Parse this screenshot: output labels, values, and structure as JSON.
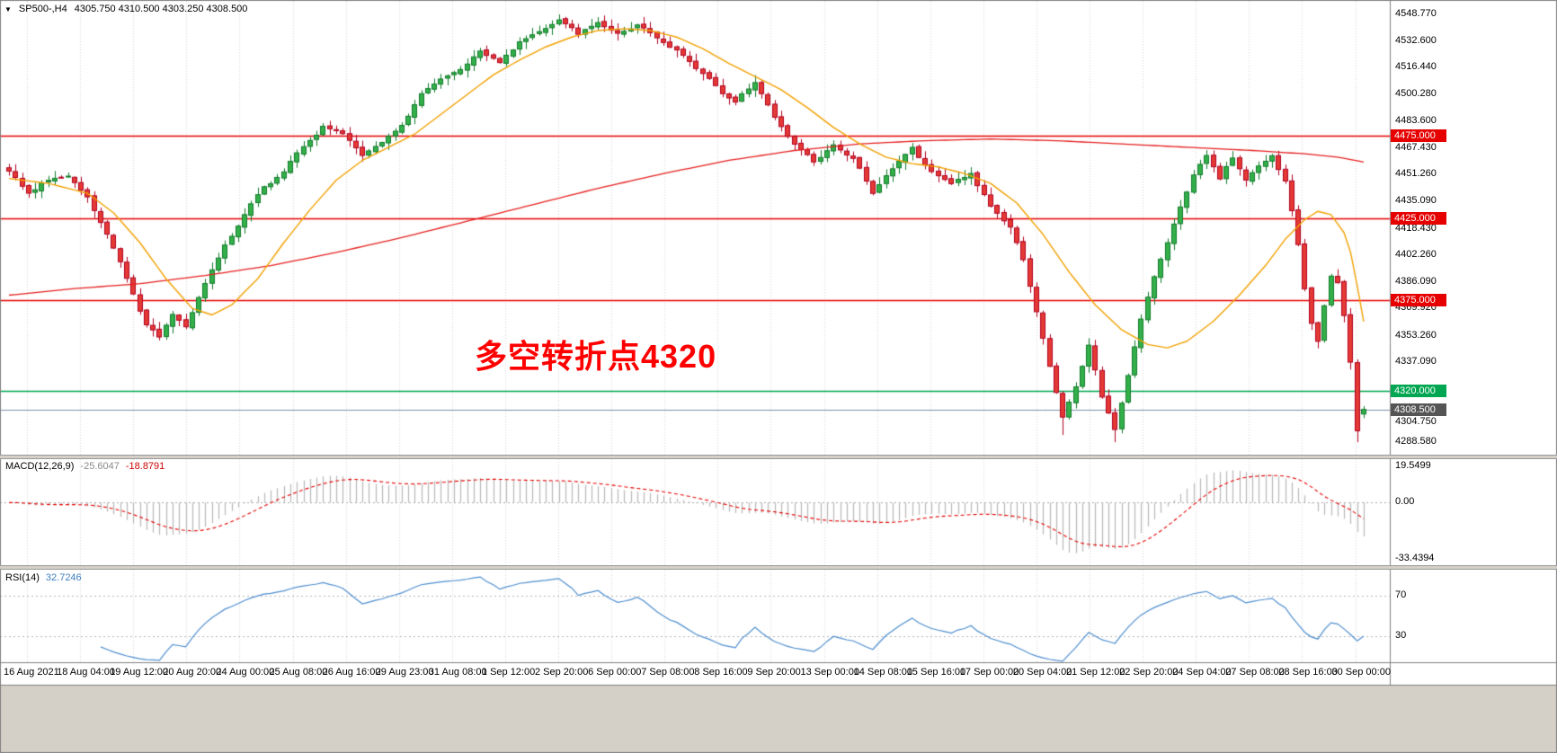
{
  "info": {
    "marker": "▼",
    "symbol_tf": "SP500-,H4",
    "ohlc": "4305.750 4310.500 4303.250 4308.500"
  },
  "chart_data": {
    "type": "candlestick",
    "symbol": "SP500-",
    "timeframe": "H4",
    "bars": 208,
    "price_range": [
      4281,
      4557
    ],
    "last_ohlc": {
      "open": 4305.75,
      "high": 4310.5,
      "low": 4303.25,
      "close": 4308.5
    },
    "annotation": {
      "text": "多空转折点4320",
      "color": "#ff0000"
    },
    "colors": {
      "up_fill": "#33b04a",
      "up_border": "#0f7a28",
      "down_fill": "#e53935",
      "down_border": "#b00020",
      "ma_fast": "#f2a100",
      "ma_slow": "#e62020",
      "grid": "#d9d9d9"
    },
    "price_axis": {
      "labels": [
        "4548.770",
        "4532.600",
        "4516.440",
        "4500.280",
        "4483.600",
        "4467.430",
        "4451.260",
        "4435.090",
        "4418.430",
        "4402.260",
        "4386.090",
        "4369.920",
        "4353.260",
        "4337.090",
        "4304.750",
        "4288.580"
      ],
      "values": [
        4548.77,
        4532.6,
        4516.44,
        4500.28,
        4483.6,
        4467.43,
        4451.26,
        4435.09,
        4418.43,
        4402.26,
        4386.09,
        4369.92,
        4353.26,
        4337.09,
        4304.75,
        4288.58
      ]
    },
    "levels": [
      {
        "value": 4475.0,
        "label": "4475.000",
        "color": "#e60000",
        "line_color": "#e60000",
        "type": "resistance"
      },
      {
        "value": 4425.0,
        "label": "4425.000",
        "color": "#e60000",
        "line_color": "#e60000",
        "type": "resistance"
      },
      {
        "value": 4375.0,
        "label": "4375.000",
        "color": "#e60000",
        "line_color": "#e60000",
        "type": "resistance"
      },
      {
        "value": 4320.0,
        "label": "4320.000",
        "color": "#00a651",
        "line_color": "#00a651",
        "type": "support"
      },
      {
        "value": 4308.5,
        "label": "4308.500",
        "color": "#555555",
        "line_color": "#7d93aa",
        "type": "current"
      }
    ],
    "time_axis": [
      "16 Aug 2021",
      "18 Aug 04:00",
      "19 Aug 12:00",
      "20 Aug 20:00",
      "24 Aug 00:00",
      "25 Aug 08:00",
      "26 Aug 16:00",
      "29 Aug 23:00",
      "31 Aug 08:00",
      "1 Sep 12:00",
      "2 Sep 20:00",
      "6 Sep 00:00",
      "7 Sep 08:00",
      "8 Sep 16:00",
      "9 Sep 20:00",
      "13 Sep 00:00",
      "14 Sep 08:00",
      "15 Sep 16:00",
      "17 Sep 00:00",
      "20 Sep 04:00",
      "21 Sep 12:00",
      "22 Sep 20:00",
      "24 Sep 04:00",
      "27 Sep 08:00",
      "28 Sep 16:00",
      "30 Sep 00:00"
    ],
    "close_keypoints": [
      [
        0,
        4452
      ],
      [
        3,
        4440
      ],
      [
        6,
        4448
      ],
      [
        9,
        4450
      ],
      [
        12,
        4438
      ],
      [
        15,
        4415
      ],
      [
        18,
        4388
      ],
      [
        21,
        4358
      ],
      [
        23,
        4352
      ],
      [
        25,
        4368
      ],
      [
        27,
        4360
      ],
      [
        30,
        4385
      ],
      [
        33,
        4408
      ],
      [
        36,
        4428
      ],
      [
        39,
        4445
      ],
      [
        42,
        4452
      ],
      [
        45,
        4468
      ],
      [
        48,
        4482
      ],
      [
        51,
        4475
      ],
      [
        54,
        4465
      ],
      [
        57,
        4472
      ],
      [
        60,
        4482
      ],
      [
        63,
        4498
      ],
      [
        66,
        4510
      ],
      [
        69,
        4515
      ],
      [
        72,
        4525
      ],
      [
        75,
        4520
      ],
      [
        78,
        4532
      ],
      [
        81,
        4538
      ],
      [
        84,
        4545
      ],
      [
        87,
        4538
      ],
      [
        90,
        4543
      ],
      [
        93,
        4537
      ],
      [
        96,
        4542
      ],
      [
        99,
        4536
      ],
      [
        102,
        4528
      ],
      [
        105,
        4515
      ],
      [
        108,
        4505
      ],
      [
        111,
        4495
      ],
      [
        114,
        4505
      ],
      [
        117,
        4488
      ],
      [
        120,
        4470
      ],
      [
        123,
        4458
      ],
      [
        126,
        4470
      ],
      [
        129,
        4460
      ],
      [
        132,
        4440
      ],
      [
        135,
        4455
      ],
      [
        138,
        4468
      ],
      [
        141,
        4455
      ],
      [
        144,
        4445
      ],
      [
        147,
        4452
      ],
      [
        150,
        4432
      ],
      [
        153,
        4418
      ],
      [
        155,
        4398
      ],
      [
        157,
        4366
      ],
      [
        159,
        4334
      ],
      [
        161,
        4304
      ],
      [
        163,
        4322
      ],
      [
        165,
        4346
      ],
      [
        167,
        4316
      ],
      [
        169,
        4298
      ],
      [
        171,
        4330
      ],
      [
        173,
        4362
      ],
      [
        175,
        4388
      ],
      [
        177,
        4408
      ],
      [
        179,
        4430
      ],
      [
        181,
        4450
      ],
      [
        183,
        4462
      ],
      [
        185,
        4448
      ],
      [
        187,
        4460
      ],
      [
        189,
        4448
      ],
      [
        191,
        4458
      ],
      [
        193,
        4465
      ],
      [
        195,
        4448
      ],
      [
        196,
        4430
      ],
      [
        197,
        4408
      ],
      [
        198,
        4382
      ],
      [
        199,
        4360
      ],
      [
        200,
        4350
      ],
      [
        201,
        4372
      ],
      [
        202,
        4390
      ],
      [
        203,
        4386
      ],
      [
        204,
        4366
      ],
      [
        205,
        4338
      ],
      [
        206,
        4296
      ],
      [
        207,
        4308.5
      ]
    ],
    "wick_overrides": {
      "84": {
        "high": 4548.77
      },
      "161": {
        "low": 4293.0
      },
      "169": {
        "low": 4288.58
      },
      "206": {
        "low": 4288.58
      }
    },
    "ma_fast": [
      [
        0,
        4449
      ],
      [
        6,
        4446
      ],
      [
        12,
        4440
      ],
      [
        16,
        4428
      ],
      [
        20,
        4410
      ],
      [
        24,
        4388
      ],
      [
        28,
        4370
      ],
      [
        31,
        4366
      ],
      [
        34,
        4372
      ],
      [
        38,
        4388
      ],
      [
        42,
        4410
      ],
      [
        46,
        4430
      ],
      [
        50,
        4448
      ],
      [
        54,
        4460
      ],
      [
        58,
        4468
      ],
      [
        62,
        4476
      ],
      [
        66,
        4488
      ],
      [
        70,
        4500
      ],
      [
        74,
        4512
      ],
      [
        78,
        4521
      ],
      [
        82,
        4529
      ],
      [
        86,
        4535
      ],
      [
        90,
        4539
      ],
      [
        94,
        4540
      ],
      [
        98,
        4539
      ],
      [
        102,
        4535
      ],
      [
        106,
        4528
      ],
      [
        110,
        4519
      ],
      [
        114,
        4511
      ],
      [
        118,
        4503
      ],
      [
        122,
        4492
      ],
      [
        126,
        4480
      ],
      [
        130,
        4470
      ],
      [
        134,
        4462
      ],
      [
        138,
        4458
      ],
      [
        142,
        4456
      ],
      [
        146,
        4452
      ],
      [
        150,
        4446
      ],
      [
        154,
        4434
      ],
      [
        158,
        4415
      ],
      [
        162,
        4392
      ],
      [
        166,
        4372
      ],
      [
        170,
        4357
      ],
      [
        174,
        4348
      ],
      [
        177,
        4346
      ],
      [
        180,
        4350
      ],
      [
        184,
        4362
      ],
      [
        188,
        4378
      ],
      [
        192,
        4396
      ],
      [
        195,
        4412
      ],
      [
        198,
        4424
      ],
      [
        200,
        4429
      ],
      [
        202,
        4427
      ],
      [
        204,
        4416
      ],
      [
        205,
        4404
      ],
      [
        206,
        4384
      ],
      [
        207,
        4362
      ]
    ],
    "ma_slow": [
      [
        0,
        4378
      ],
      [
        10,
        4382
      ],
      [
        20,
        4385
      ],
      [
        30,
        4390
      ],
      [
        40,
        4396
      ],
      [
        50,
        4404
      ],
      [
        60,
        4413
      ],
      [
        70,
        4423
      ],
      [
        80,
        4433
      ],
      [
        90,
        4443
      ],
      [
        100,
        4452
      ],
      [
        110,
        4460
      ],
      [
        120,
        4466
      ],
      [
        130,
        4470
      ],
      [
        140,
        4472
      ],
      [
        150,
        4473
      ],
      [
        160,
        4472
      ],
      [
        170,
        4470
      ],
      [
        180,
        4468
      ],
      [
        190,
        4466
      ],
      [
        198,
        4464
      ],
      [
        203,
        4462
      ],
      [
        207,
        4459
      ]
    ],
    "indicators": {
      "macd": {
        "label": "MACD(12,26,9)",
        "value_main": "-25.6047",
        "value_signal": "-18.8791",
        "params": [
          12,
          26,
          9
        ],
        "axis_labels": [
          "19.5499",
          "0.00",
          "-33.4394"
        ],
        "histogram_color": "#b8b8b8",
        "signal_color": "#e60000"
      },
      "rsi": {
        "label": "RSI(14)",
        "value": "32.7246",
        "period": 14,
        "levels": [
          70,
          30
        ],
        "axis_labels": [
          "70",
          "30"
        ],
        "line_color": "#4f8fd0"
      }
    }
  }
}
